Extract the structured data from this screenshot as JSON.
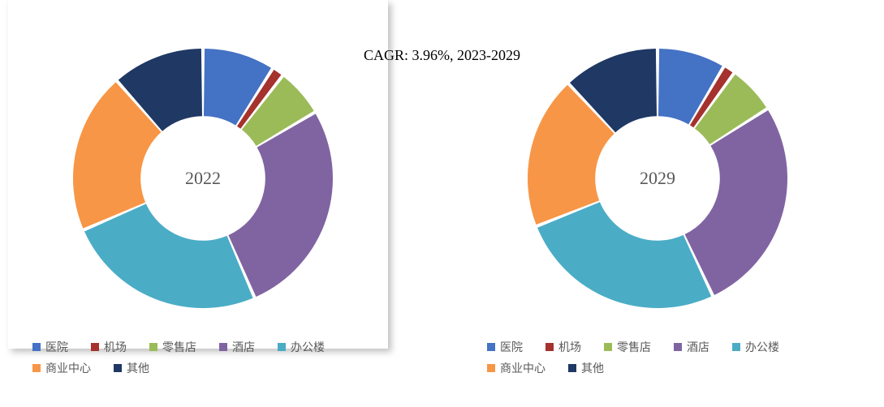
{
  "title": "CAGR:  3.96%, 2023-2029",
  "title_fontsize": 18,
  "title_color": "#000000",
  "background_color": "#ffffff",
  "charts": [
    {
      "type": "donut",
      "center_label": "2022",
      "center_fontsize": 22,
      "inner_radius_ratio": 0.48,
      "outer_radius": 160,
      "gap_deg": 1.5,
      "start_angle_deg": -90,
      "slices": [
        {
          "label": "医院",
          "value": 9,
          "color": "#4472c4"
        },
        {
          "label": "机场",
          "value": 1.5,
          "color": "#a5322d"
        },
        {
          "label": "零售店",
          "value": 6,
          "color": "#9bbb59"
        },
        {
          "label": "酒店",
          "value": 27,
          "color": "#8064a2"
        },
        {
          "label": "办公楼",
          "value": 25,
          "color": "#4bacc6"
        },
        {
          "label": "商业中心",
          "value": 20,
          "color": "#f79646"
        },
        {
          "label": "其他",
          "value": 11.5,
          "color": "#1f3864"
        }
      ]
    },
    {
      "type": "donut",
      "center_label": "2029",
      "center_fontsize": 22,
      "inner_radius_ratio": 0.48,
      "outer_radius": 160,
      "gap_deg": 1.5,
      "start_angle_deg": -90,
      "slices": [
        {
          "label": "医院",
          "value": 8.5,
          "color": "#4472c4"
        },
        {
          "label": "机场",
          "value": 1.5,
          "color": "#a5322d"
        },
        {
          "label": "零售店",
          "value": 6,
          "color": "#9bbb59"
        },
        {
          "label": "酒店",
          "value": 27,
          "color": "#8064a2"
        },
        {
          "label": "办公楼",
          "value": 26,
          "color": "#4bacc6"
        },
        {
          "label": "商业中心",
          "value": 19,
          "color": "#f79646"
        },
        {
          "label": "其他",
          "value": 12,
          "color": "#1f3864"
        }
      ]
    }
  ],
  "legend": {
    "items": [
      {
        "label": "医院",
        "color": "#4472c4"
      },
      {
        "label": "机场",
        "color": "#a5322d"
      },
      {
        "label": "零售店",
        "color": "#9bbb59"
      },
      {
        "label": "酒店",
        "color": "#8064a2"
      },
      {
        "label": "办公楼",
        "color": "#4bacc6"
      },
      {
        "label": "商业中心",
        "color": "#f79646"
      },
      {
        "label": "其他",
        "color": "#1f3864"
      }
    ],
    "fontsize": 14,
    "text_color": "#595959"
  }
}
